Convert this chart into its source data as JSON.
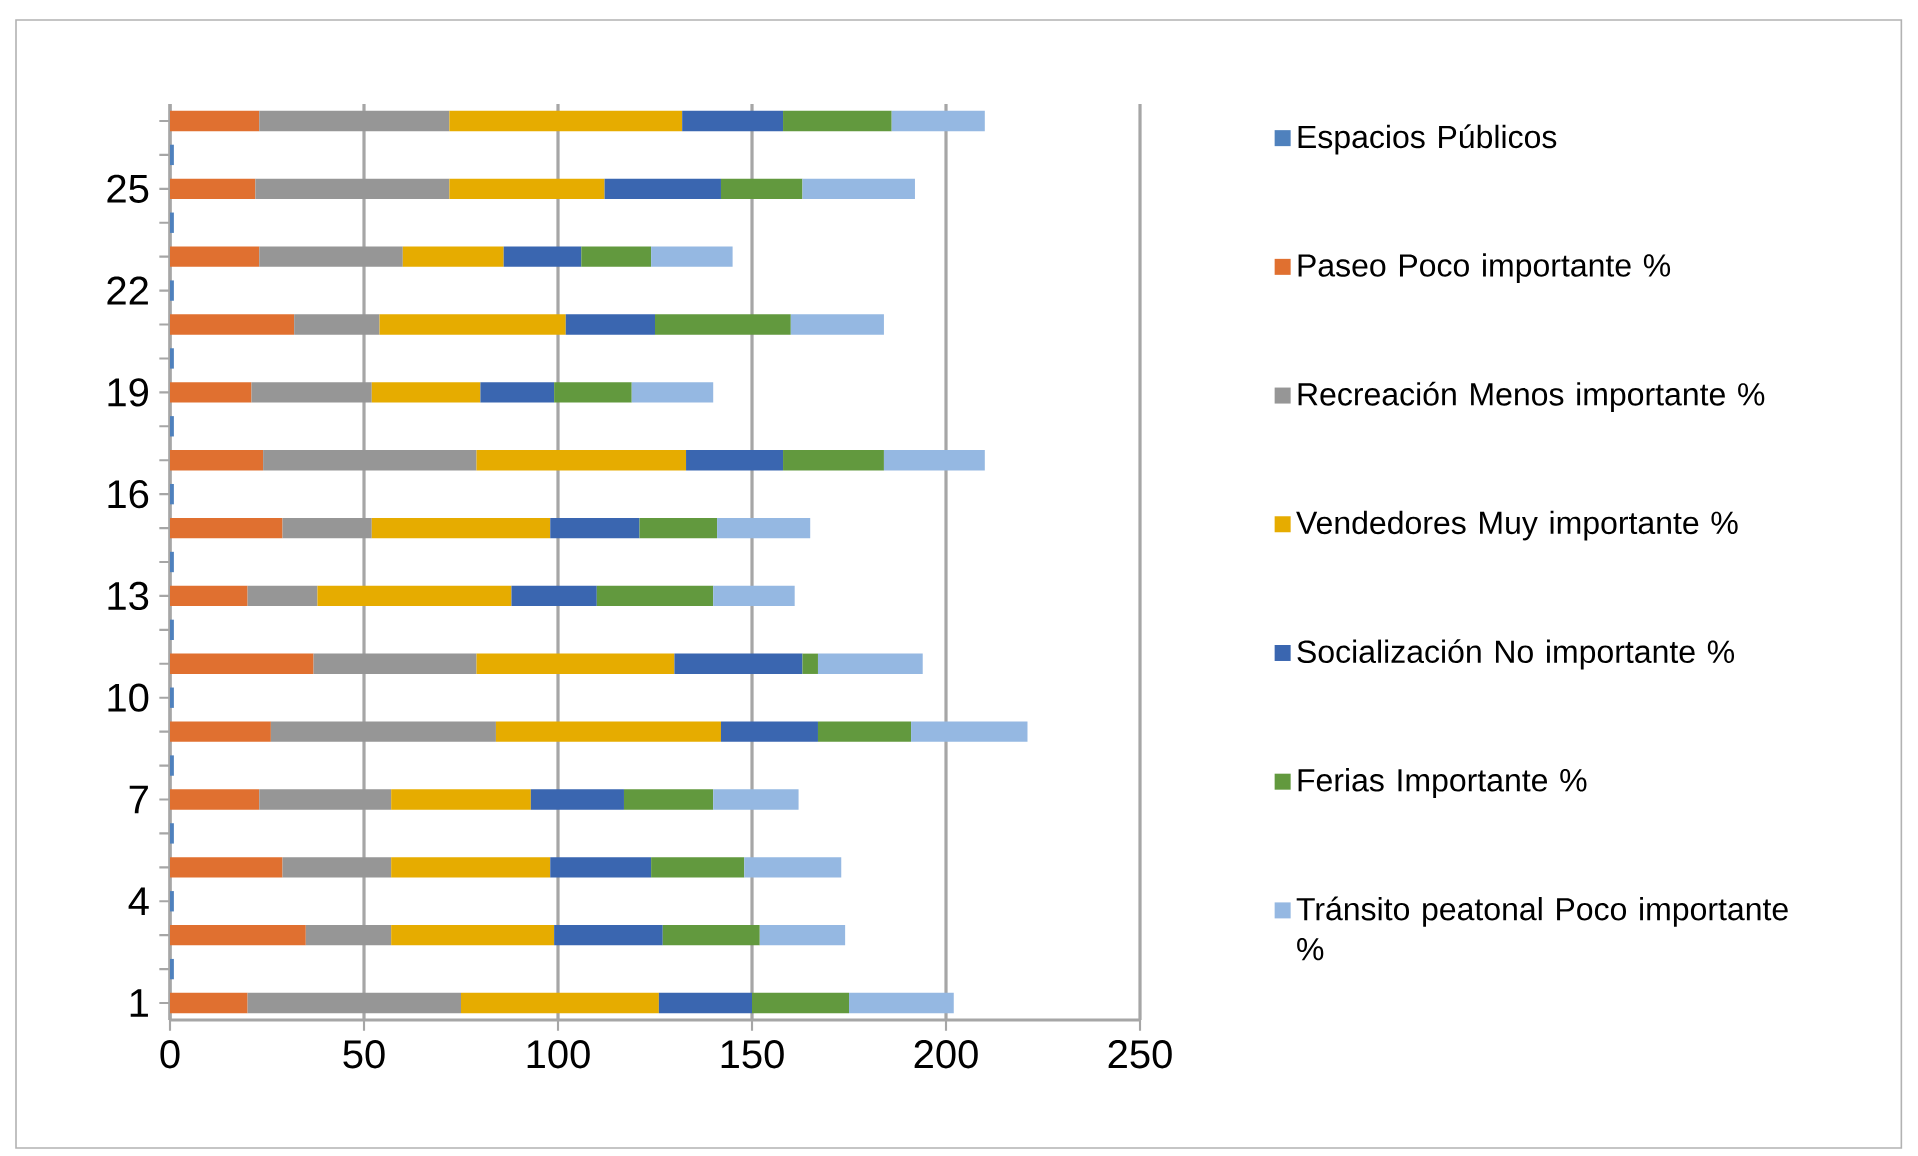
{
  "chart_data": {
    "type": "bar",
    "orientation": "horizontal",
    "stacked": true,
    "categories": [
      null,
      null,
      "25",
      null,
      null,
      "22",
      null,
      null,
      "19",
      null,
      null,
      "16",
      null,
      null,
      "13",
      null,
      null,
      "10",
      null,
      null,
      "7",
      null,
      null,
      "4",
      null,
      null,
      "1"
    ],
    "xlim": [
      0,
      250
    ],
    "xticks": [
      0,
      50,
      100,
      150,
      200,
      250
    ],
    "grid": "x",
    "legend": "right",
    "series": [
      {
        "name": "Espacios Públicos",
        "color": "#4f81bd",
        "values": [
          null,
          1,
          null,
          1,
          null,
          1,
          null,
          1,
          null,
          1,
          null,
          1,
          null,
          1,
          null,
          1,
          null,
          1,
          null,
          1,
          null,
          1,
          null,
          1,
          null,
          1,
          null
        ]
      },
      {
        "name": "Paseo Poco importante %",
        "color": "#e07030",
        "values": [
          23,
          null,
          22,
          null,
          23,
          null,
          32,
          null,
          21,
          null,
          24,
          null,
          29,
          null,
          20,
          null,
          37,
          null,
          26,
          null,
          23,
          null,
          29,
          null,
          35,
          null,
          20
        ]
      },
      {
        "name": "Recreación Menos importante %",
        "color": "#969696",
        "values": [
          49,
          null,
          50,
          null,
          37,
          null,
          22,
          null,
          31,
          null,
          55,
          null,
          23,
          null,
          18,
          null,
          42,
          null,
          58,
          null,
          34,
          null,
          28,
          null,
          22,
          null,
          55
        ]
      },
      {
        "name": "Vendedores Muy importante %",
        "color": "#e6ac00",
        "values": [
          60,
          null,
          40,
          null,
          26,
          null,
          48,
          null,
          28,
          null,
          54,
          null,
          46,
          null,
          50,
          null,
          51,
          null,
          58,
          null,
          36,
          null,
          41,
          null,
          42,
          null,
          51
        ]
      },
      {
        "name": "Socialización No importante %",
        "color": "#3a66b0",
        "values": [
          26,
          null,
          30,
          null,
          20,
          null,
          23,
          null,
          19,
          null,
          25,
          null,
          23,
          null,
          22,
          null,
          33,
          null,
          25,
          null,
          24,
          null,
          26,
          null,
          28,
          null,
          24
        ]
      },
      {
        "name": "Ferias Importante %",
        "color": "#62993e",
        "values": [
          28,
          null,
          21,
          null,
          18,
          null,
          35,
          null,
          20,
          null,
          26,
          null,
          20,
          null,
          30,
          null,
          4,
          null,
          24,
          null,
          23,
          null,
          24,
          null,
          25,
          null,
          25
        ]
      },
      {
        "name": "Tránsito peatonal Poco importante %",
        "color": "#95b8e2",
        "values": [
          24,
          null,
          29,
          null,
          21,
          null,
          24,
          null,
          21,
          null,
          26,
          null,
          24,
          null,
          21,
          null,
          27,
          null,
          30,
          null,
          22,
          null,
          25,
          null,
          22,
          null,
          27
        ]
      }
    ]
  }
}
